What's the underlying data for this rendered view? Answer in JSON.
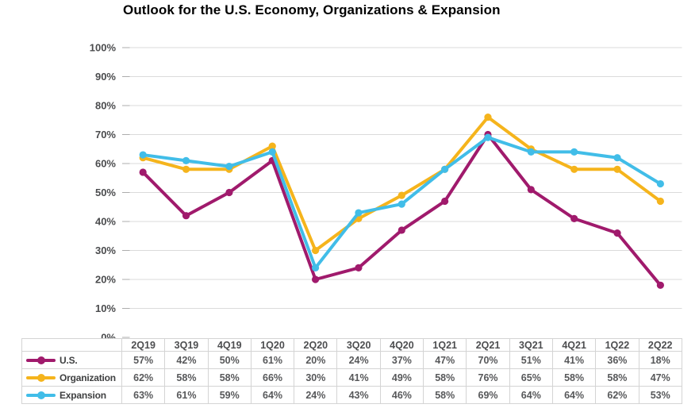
{
  "chart_data": {
    "type": "line",
    "title": "Outlook for the U.S. Economy, Organizations & Expansion",
    "categories": [
      "2Q19",
      "3Q19",
      "4Q19",
      "1Q20",
      "2Q20",
      "3Q20",
      "4Q20",
      "1Q21",
      "2Q21",
      "3Q21",
      "4Q21",
      "1Q22",
      "2Q22"
    ],
    "series": [
      {
        "name": "U.S.",
        "color": "#A01A6C",
        "values": [
          57,
          42,
          50,
          61,
          20,
          24,
          37,
          47,
          70,
          51,
          41,
          36,
          18
        ]
      },
      {
        "name": "Organization",
        "color": "#F5B41C",
        "values": [
          62,
          58,
          58,
          66,
          30,
          41,
          49,
          58,
          76,
          65,
          58,
          58,
          47
        ]
      },
      {
        "name": "Expansion",
        "color": "#41BDE8",
        "values": [
          63,
          61,
          59,
          64,
          24,
          43,
          46,
          58,
          69,
          64,
          64,
          62,
          53
        ]
      }
    ],
    "value_suffix": "%",
    "yticks": [
      "0%",
      "10%",
      "20%",
      "30%",
      "40%",
      "50%",
      "60%",
      "70%",
      "80%",
      "90%",
      "100%"
    ],
    "ylim": [
      0,
      100
    ],
    "xlabel": "",
    "ylabel": "",
    "grid": "horizontal",
    "legend_position": "table-left"
  },
  "colors": {
    "gridline": "#DBDBDB",
    "axis_tick": "#ADADAD",
    "axis_label": "#4B4C4E",
    "table_border": "#D4D4D4",
    "table_text": "#57585A",
    "title_text": "#000000",
    "background": "#FFFFFF"
  }
}
